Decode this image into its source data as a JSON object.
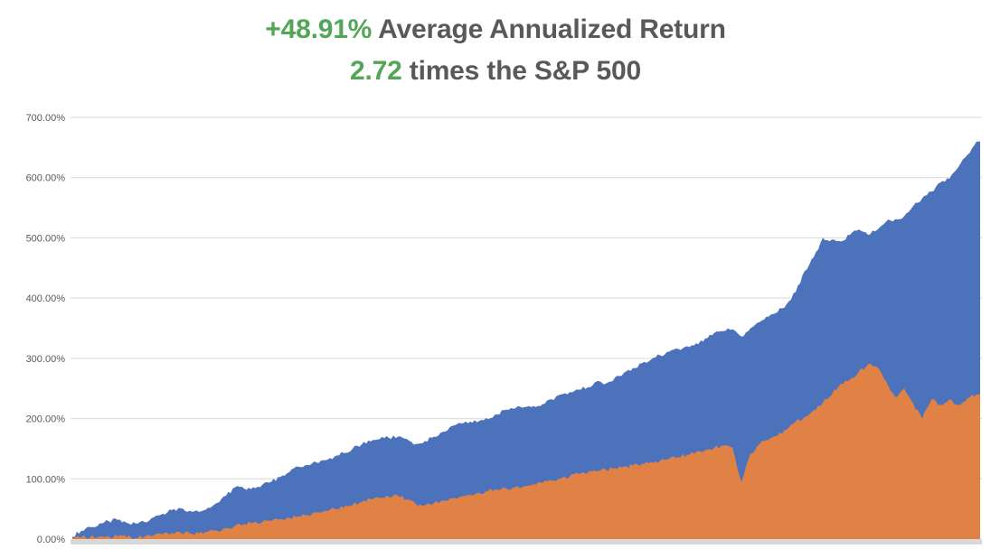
{
  "title": {
    "line1_highlight": "+48.91%",
    "line1_rest": " Average Annualized Return",
    "line2_highlight": "2.72",
    "line2_rest": " times the S&P 500",
    "highlight_color": "#53A658",
    "text_color": "#595959"
  },
  "chart_data": {
    "type": "area",
    "mode": "overlapping",
    "title": "+48.91% Average Annualized Return / 2.72 times the S&P 500",
    "xlabel": "",
    "ylabel": "",
    "x_axis_labels_visible": false,
    "grid": "horizontal",
    "legend": false,
    "ylim": [
      0,
      700
    ],
    "yticks": [
      0,
      100,
      200,
      300,
      400,
      500,
      600,
      700
    ],
    "ytick_labels": [
      "0.00%",
      "100.00%",
      "200.00%",
      "300.00%",
      "400.00%",
      "500.00%",
      "600.00%",
      "700.00%"
    ],
    "grid_color": "#D9D9D9",
    "axis_line_color": "#D8D8D8",
    "tick_color": "#595959",
    "y_units": "percent cumulative return",
    "series": [
      {
        "id": "blue-area",
        "name": "blue series (strategy, ends ~660%)",
        "color": "#4C72BC",
        "values": [
          4,
          14,
          20,
          26,
          30,
          32,
          27,
          26,
          28,
          36,
          42,
          48,
          51,
          47,
          45,
          52,
          60,
          72,
          86,
          84,
          86,
          90,
          95,
          103,
          111,
          120,
          123,
          127,
          131,
          137,
          143,
          150,
          157,
          162,
          166,
          168,
          170,
          166,
          158,
          163,
          170,
          178,
          188,
          192,
          195,
          196,
          199,
          207,
          215,
          217,
          219,
          221,
          224,
          232,
          240,
          244,
          248,
          252,
          262,
          258,
          268,
          276,
          284,
          292,
          298,
          305,
          311,
          316,
          320,
          325,
          333,
          342,
          345,
          348,
          336,
          350,
          360,
          369,
          377,
          390,
          410,
          445,
          468,
          500,
          497,
          494,
          505,
          514,
          505,
          513,
          527,
          531,
          536,
          553,
          566,
          577,
          592,
          598,
          618,
          638,
          660
        ]
      },
      {
        "id": "orange-area",
        "name": "orange series (S&P 500 benchmark, ends ~240%)",
        "color": "#E08145",
        "values": [
          2,
          3,
          3,
          4,
          5,
          4,
          3,
          2,
          4,
          6,
          8,
          10,
          11,
          9,
          10,
          12,
          14,
          18,
          22,
          25,
          27,
          28,
          30,
          33,
          35,
          38,
          40,
          44,
          47,
          50,
          52,
          57,
          62,
          66,
          68,
          70,
          72,
          66,
          58,
          56,
          60,
          64,
          68,
          71,
          74,
          77,
          80,
          82,
          84,
          86,
          88,
          91,
          93,
          97,
          100,
          104,
          108,
          110,
          112,
          115,
          118,
          120,
          122,
          125,
          128,
          130,
          133,
          136,
          140,
          144,
          148,
          152,
          155,
          152,
          95,
          142,
          158,
          165,
          172,
          182,
          195,
          203,
          214,
          226,
          240,
          258,
          265,
          278,
          290,
          286,
          262,
          236,
          250,
          225,
          200,
          232,
          223,
          232,
          223,
          234,
          240
        ]
      }
    ]
  }
}
